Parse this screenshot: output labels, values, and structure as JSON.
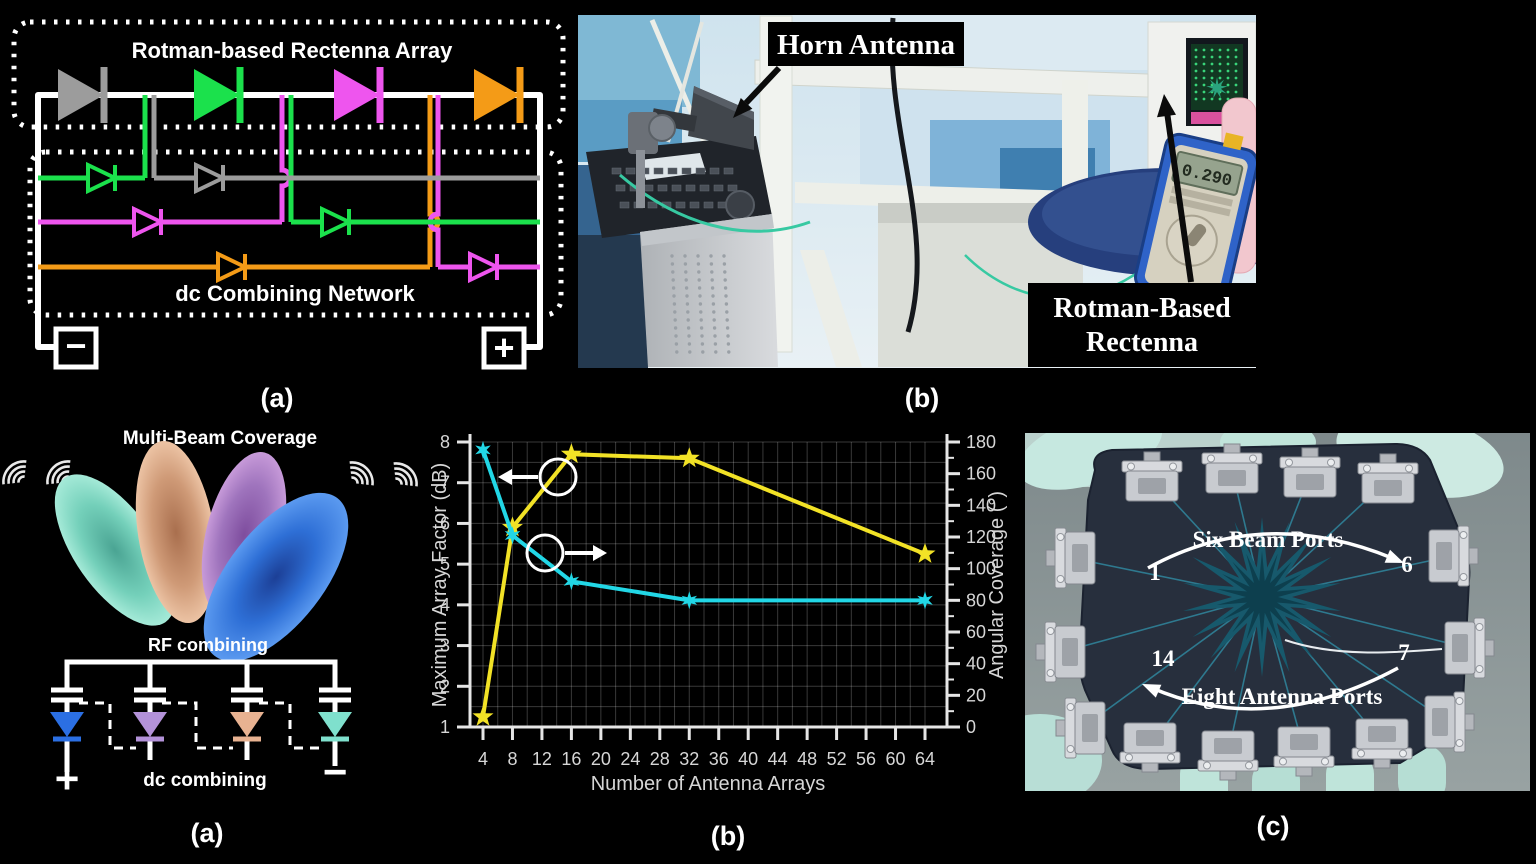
{
  "figure": {
    "captions": {
      "circuit": "(a)",
      "measurement": "(b)",
      "multibeam": "(a)",
      "chart": "(b)",
      "lens": "(c)"
    },
    "circuit_panel": {
      "array_box_title": "Rotman-based Rectenna Array",
      "network_box_title": "dc Combining Network",
      "minus_terminal": "−",
      "plus_terminal": "+",
      "diode_colors": {
        "gray": "#9c9c9c",
        "green": "#1be14c",
        "magenta": "#ee55ee",
        "orange": "#f49b17"
      }
    },
    "measurement_panel": {
      "horn_label": "Horn Antenna",
      "rectenna_label_line1": "Rotman-Based",
      "rectenna_label_line2": "Rectenna",
      "multimeter_reading": "0.290"
    },
    "multibeam_panel": {
      "title": "Multi-Beam Coverage",
      "rf_label": "RF combining",
      "dc_label": "dc combining",
      "plus_terminal": "+",
      "minus_terminal": "−",
      "beam_colors": [
        "#74d0ba",
        "#cf9a77",
        "#9f74bd",
        "#2e6fd6"
      ],
      "diode_colors": [
        "#2b6fe3",
        "#b392d9",
        "#e8b291",
        "#7fe0cd"
      ]
    },
    "lens_panel": {
      "beam_ports_label": "Six Beam Ports",
      "antenna_ports_label": "Eight Antenna Ports",
      "beam_port_first": "1",
      "beam_port_last": "6",
      "antenna_port_left": "14",
      "antenna_port_right": "7"
    }
  },
  "chart_data": {
    "type": "line",
    "title": "",
    "xlabel": "Number of Antenna Arrays",
    "ylabel_left": "Maximum Array Factor (dB)",
    "ylabel_right": "Angular Coverage (°)",
    "xlim": [
      4,
      64
    ],
    "x_ticks": [
      4,
      8,
      12,
      16,
      20,
      24,
      28,
      32,
      36,
      40,
      44,
      48,
      52,
      56,
      60,
      64
    ],
    "ylim_left": [
      1,
      8
    ],
    "y_ticks_left": [
      1,
      2,
      3,
      4,
      5,
      6,
      7,
      8
    ],
    "ylim_right": [
      0,
      180
    ],
    "y_ticks_right": [
      0,
      20,
      40,
      60,
      80,
      100,
      120,
      140,
      160,
      180
    ],
    "grid": {
      "on": true,
      "x_minor_step": 2,
      "y_minor_step_left": 0.5
    },
    "legend": "none",
    "series": [
      {
        "name": "Maximum Array Factor (dB)",
        "axis": "left",
        "color": "#f2e226",
        "marker": "star5",
        "x": [
          4,
          8,
          16,
          32,
          64
        ],
        "y": [
          1.25,
          5.9,
          7.7,
          7.6,
          5.25
        ]
      },
      {
        "name": "Angular Coverage (°)",
        "axis": "right",
        "color": "#22d7e6",
        "marker": "star6",
        "x": [
          4,
          8,
          16,
          32,
          64
        ],
        "y": [
          175,
          121,
          92,
          80,
          80
        ]
      }
    ],
    "annotations": [
      {
        "target_series": "Maximum Array Factor (dB)",
        "symbol": "circle-with-left-arrow"
      },
      {
        "target_series": "Angular Coverage (°)",
        "symbol": "circle-with-right-arrow"
      }
    ]
  }
}
